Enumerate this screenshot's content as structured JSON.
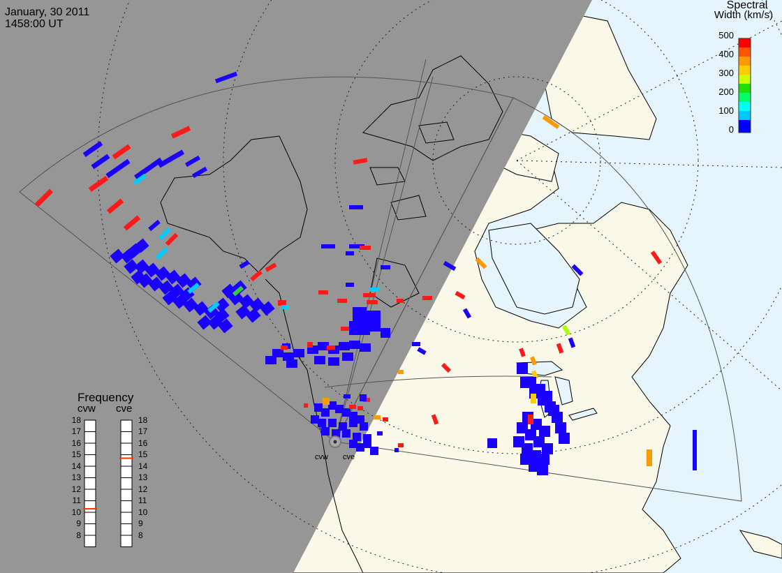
{
  "header": {
    "date": "January, 30 2011",
    "time": "1458:00 UT"
  },
  "colorbar": {
    "title_line1": "Spectral",
    "title_line2": "Width (km/s)",
    "ticks": [
      "500",
      "400",
      "300",
      "200",
      "100",
      "0"
    ],
    "colors": [
      "#0000ff",
      "#00c8ff",
      "#00ffff",
      "#00ff66",
      "#22dd00",
      "#aaff00",
      "#ffff00",
      "#ffcc00",
      "#ff9900",
      "#ff5500",
      "#ff0000"
    ]
  },
  "frequency_panel": {
    "title": "Frequency",
    "left_label": "cvw",
    "right_label": "cve",
    "levels": [
      "18",
      "17",
      "16",
      "15",
      "14",
      "13",
      "12",
      "11",
      "10",
      "9",
      "8"
    ],
    "cvw_value_mhz": 10.8,
    "cve_value_mhz": 15.2,
    "marker_color": "#ff3300"
  },
  "stations": [
    {
      "name": "cvw"
    },
    {
      "name": "cve"
    }
  ],
  "colors": {
    "night": "#969696",
    "land": "#faf8e8",
    "ocean": "#e6f4fc",
    "coast": "#000000",
    "fov_outline": "#555555",
    "grid_dots": "#222222",
    "scatter_blue": "#1a00ff",
    "scatter_red": "#ff1a1a",
    "scatter_orange": "#ff9900",
    "scatter_yellow": "#ffcc00",
    "scatter_cyan": "#00ccff"
  }
}
